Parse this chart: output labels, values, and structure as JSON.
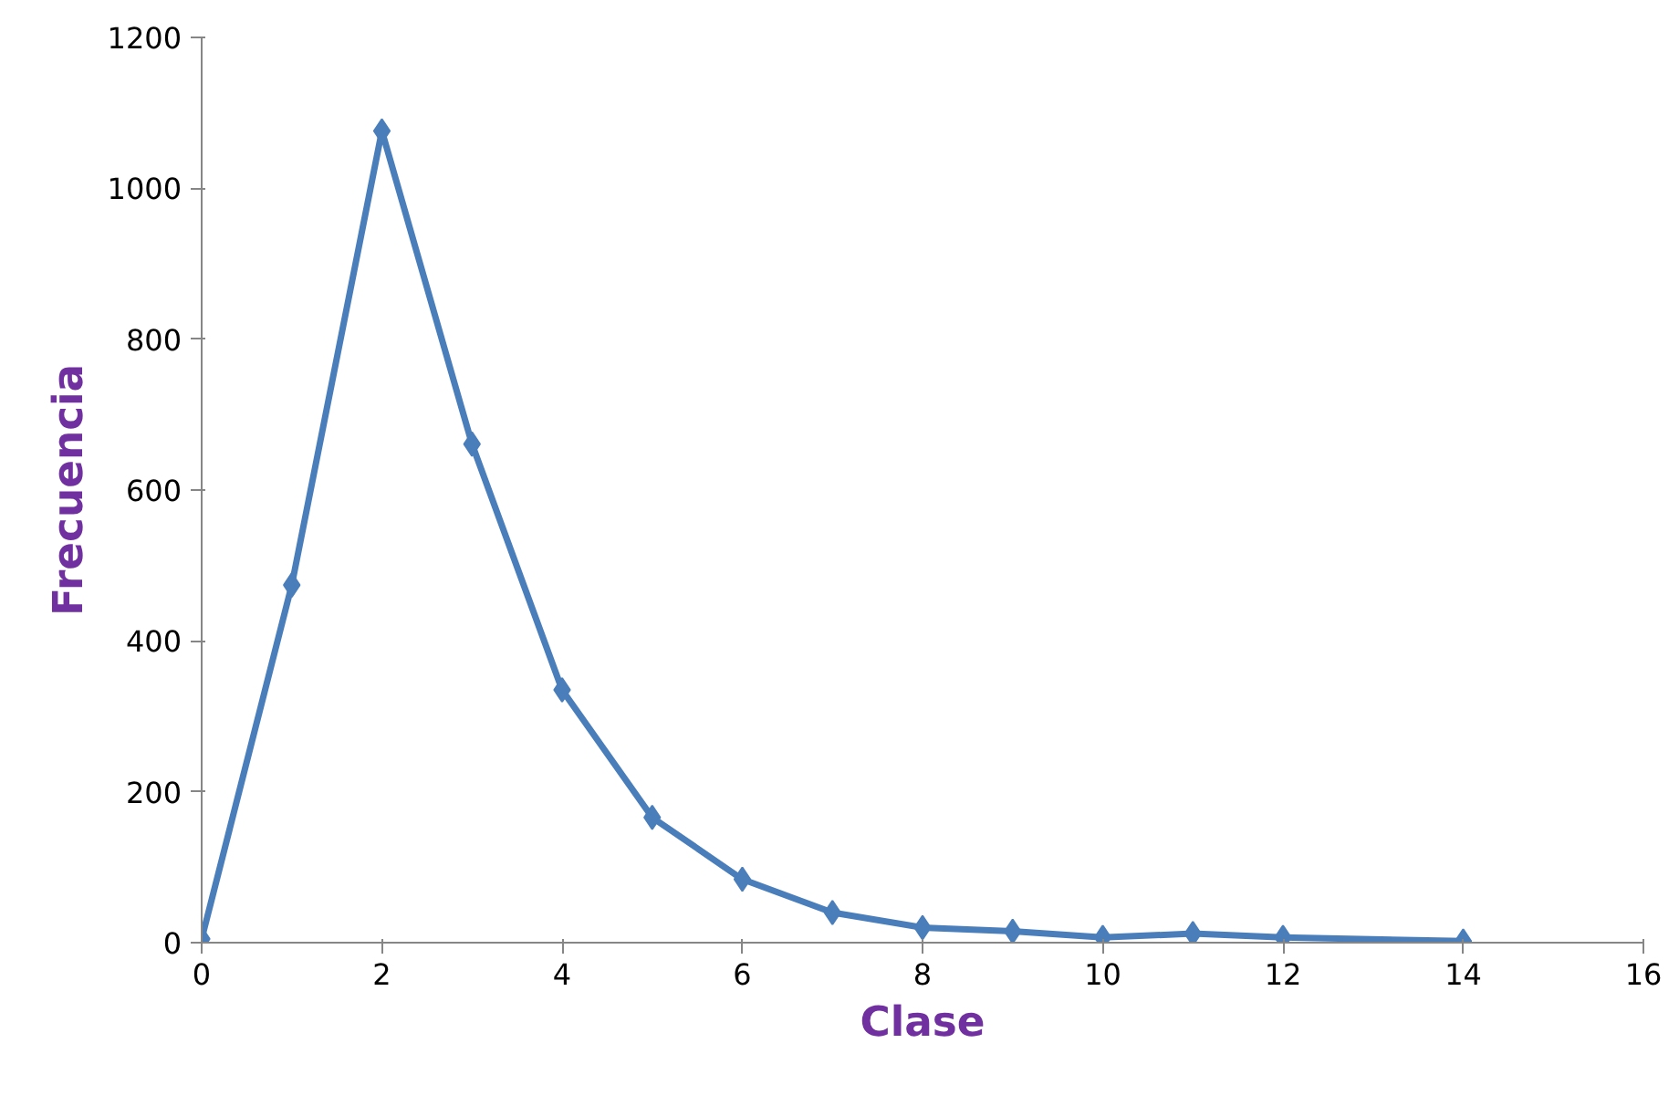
{
  "chart_data": {
    "type": "line",
    "xlabel": "Clase",
    "ylabel": "Frecuencia",
    "x": [
      0,
      1,
      2,
      3,
      4,
      5,
      6,
      7,
      8,
      9,
      10,
      11,
      12,
      14
    ],
    "series": [
      {
        "color": "#4a7ebb",
        "values": [
          5,
          474,
          1076,
          661,
          335,
          166,
          84,
          40,
          20,
          15,
          7,
          12,
          7,
          2
        ]
      }
    ],
    "xlim": [
      0,
      16
    ],
    "xticks": [
      0,
      2,
      4,
      6,
      8,
      10,
      12,
      14,
      16
    ],
    "ylim": [
      0,
      1200
    ],
    "yticks": [
      0,
      200,
      400,
      600,
      800,
      1000,
      1200
    ],
    "grid": false,
    "marker": "diamond",
    "line_style": "solid"
  }
}
